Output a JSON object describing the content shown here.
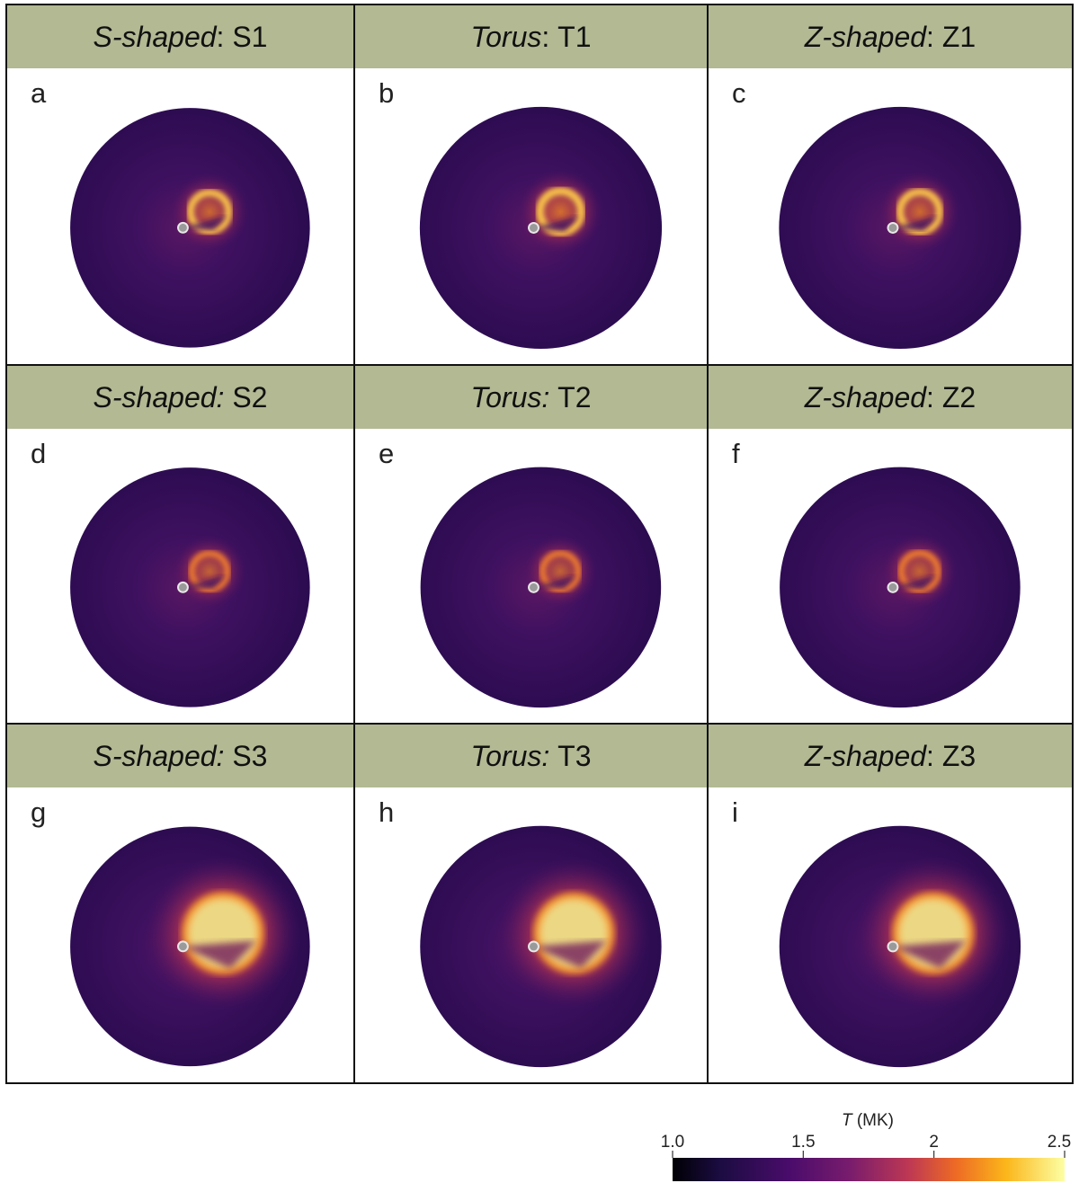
{
  "panels": [
    {
      "letter": "a",
      "shape": "S-shaped",
      "sep": ": ",
      "id": "S1",
      "hot": 0.35
    },
    {
      "letter": "b",
      "shape": "Torus",
      "sep": ": ",
      "id": "T1",
      "hot": 0.5
    },
    {
      "letter": "c",
      "shape": "Z-shaped",
      "sep": ": ",
      "id": "Z1",
      "hot": 0.4
    },
    {
      "letter": "d",
      "shape": "S-shaped:",
      "sep": " ",
      "id": "S2",
      "hot": 0.2
    },
    {
      "letter": "e",
      "shape": "Torus:",
      "sep": " ",
      "id": "T2",
      "hot": 0.2
    },
    {
      "letter": "f",
      "shape": "Z-shaped",
      "sep": ": ",
      "id": "Z2",
      "hot": 0.25
    },
    {
      "letter": "g",
      "shape": "S-shaped:",
      "sep": " ",
      "id": "S3",
      "hot": 1.0
    },
    {
      "letter": "h",
      "shape": "Torus:",
      "sep": " ",
      "id": "T3",
      "hot": 0.85
    },
    {
      "letter": "i",
      "shape": "Z-shaped",
      "sep": ": ",
      "id": "Z3",
      "hot": 0.9
    }
  ],
  "colorbar": {
    "title_var": "T",
    "title_unit": " (MK)",
    "ticks": [
      "1.0",
      "1.5",
      "2",
      "2.5"
    ],
    "tick_values": [
      1.0,
      1.5,
      2.0,
      2.5
    ],
    "range": [
      1.0,
      2.5
    ],
    "colormap": "inferno",
    "colors": [
      "#000004",
      "#3b0f70",
      "#8c2981",
      "#de4968",
      "#fe9f6d",
      "#fcfdbf"
    ]
  }
}
